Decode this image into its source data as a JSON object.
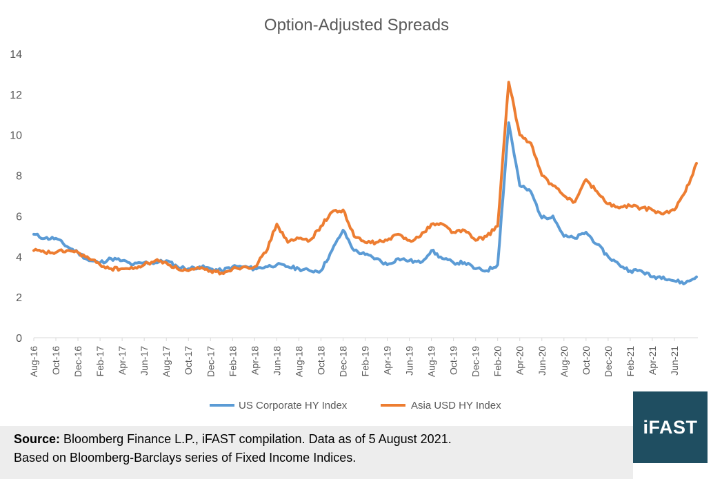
{
  "chart_data": {
    "type": "line",
    "title": "Option-Adjusted Spreads",
    "xlabel": "",
    "ylabel": "",
    "ylim": [
      0,
      14
    ],
    "yticks": [
      0,
      2,
      4,
      6,
      8,
      10,
      12,
      14
    ],
    "grid": false,
    "legend_position": "bottom",
    "x_tick_labels": [
      "Aug-16",
      "Oct-16",
      "Dec-16",
      "Feb-17",
      "Apr-17",
      "Jun-17",
      "Aug-17",
      "Oct-17",
      "Dec-17",
      "Feb-18",
      "Apr-18",
      "Jun-18",
      "Aug-18",
      "Oct-18",
      "Dec-18",
      "Feb-19",
      "Apr-19",
      "Jun-19",
      "Aug-19",
      "Oct-19",
      "Dec-19",
      "Feb-20",
      "Apr-20",
      "Jun-20",
      "Aug-20",
      "Oct-20",
      "Dec-20",
      "Feb-21",
      "Apr-21",
      "Jun-21"
    ],
    "x": [
      "2016-08",
      "2016-09",
      "2016-10",
      "2016-11",
      "2016-12",
      "2017-01",
      "2017-02",
      "2017-03",
      "2017-04",
      "2017-05",
      "2017-06",
      "2017-07",
      "2017-08",
      "2017-09",
      "2017-10",
      "2017-11",
      "2017-12",
      "2018-01",
      "2018-02",
      "2018-03",
      "2018-04",
      "2018-05",
      "2018-06",
      "2018-07",
      "2018-08",
      "2018-09",
      "2018-10",
      "2018-11",
      "2018-12",
      "2019-01",
      "2019-02",
      "2019-03",
      "2019-04",
      "2019-05",
      "2019-06",
      "2019-07",
      "2019-08",
      "2019-09",
      "2019-10",
      "2019-11",
      "2019-12",
      "2020-01",
      "2020-02",
      "2020-03",
      "2020-04",
      "2020-05",
      "2020-06",
      "2020-07",
      "2020-08",
      "2020-09",
      "2020-10",
      "2020-11",
      "2020-12",
      "2021-01",
      "2021-02",
      "2021-03",
      "2021-04",
      "2021-05",
      "2021-06",
      "2021-07",
      "2021-08"
    ],
    "series": [
      {
        "name": "US Corporate HY Index",
        "color": "#5b9bd5",
        "values": [
          5.1,
          4.9,
          4.9,
          4.5,
          4.2,
          3.8,
          3.7,
          3.9,
          3.8,
          3.6,
          3.7,
          3.7,
          3.8,
          3.5,
          3.4,
          3.5,
          3.4,
          3.3,
          3.5,
          3.5,
          3.4,
          3.5,
          3.6,
          3.5,
          3.4,
          3.3,
          3.3,
          4.3,
          5.3,
          4.3,
          4.1,
          3.9,
          3.6,
          3.9,
          3.8,
          3.7,
          4.3,
          3.9,
          3.7,
          3.7,
          3.4,
          3.3,
          3.6,
          10.6,
          7.5,
          7.2,
          5.9,
          6.0,
          5.0,
          4.9,
          5.2,
          4.6,
          4.0,
          3.6,
          3.3,
          3.3,
          3.0,
          3.0,
          2.8,
          2.7,
          3.0
        ]
      },
      {
        "name": "Asia USD HY Index",
        "color": "#ed7d31",
        "values": [
          4.3,
          4.2,
          4.2,
          4.3,
          4.2,
          3.9,
          3.6,
          3.4,
          3.4,
          3.4,
          3.6,
          3.8,
          3.7,
          3.4,
          3.3,
          3.4,
          3.3,
          3.2,
          3.4,
          3.5,
          3.5,
          4.2,
          5.6,
          4.7,
          4.9,
          4.8,
          5.5,
          6.2,
          6.3,
          5.0,
          4.7,
          4.7,
          4.8,
          5.1,
          4.8,
          5.0,
          5.6,
          5.6,
          5.2,
          5.3,
          4.8,
          5.0,
          5.5,
          12.6,
          10.0,
          9.6,
          8.0,
          7.5,
          7.0,
          6.7,
          7.8,
          7.2,
          6.6,
          6.4,
          6.5,
          6.4,
          6.3,
          6.1,
          6.3,
          7.2,
          8.6
        ]
      }
    ]
  },
  "source": {
    "label": "Source:",
    "line1": "Bloomberg Finance L.P., iFAST compilation. Data as of 5 August 2021.",
    "line2": "Based on Bloomberg-Barclays series of Fixed Income Indices."
  },
  "logo": {
    "text": "iFAST"
  }
}
